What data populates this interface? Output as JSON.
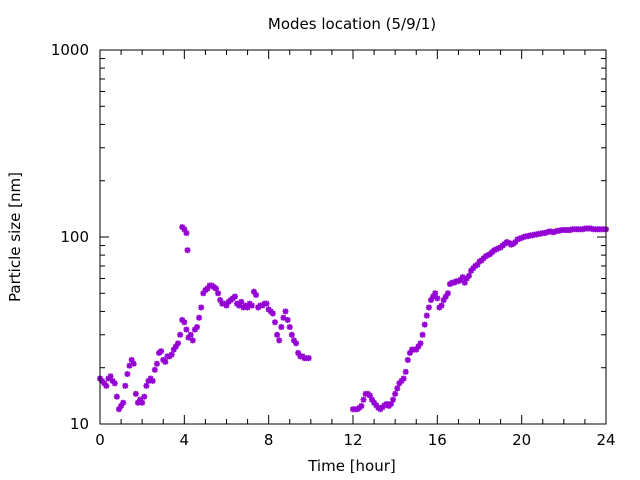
{
  "chart_data": {
    "type": "scatter",
    "title": "Modes location (5/9/1)",
    "xlabel": "Time [hour]",
    "ylabel": "Particle size [nm]",
    "xlim": [
      0,
      24
    ],
    "ylim": [
      10,
      1000
    ],
    "yscale": "log",
    "xticks": [
      0,
      4,
      8,
      12,
      16,
      20,
      24
    ],
    "xtick_labels": [
      "0",
      "4",
      "8",
      "12",
      "16",
      "20",
      "24"
    ],
    "yticks": [
      10,
      100,
      1000
    ],
    "ytick_labels": [
      "10",
      "100",
      "1000"
    ],
    "grid": false,
    "legend": "none",
    "marker": "asterisk",
    "colors": {
      "series": "#9400d3",
      "axis": "#000000"
    },
    "series": [
      {
        "x": [
          0.0,
          0.1,
          0.2,
          0.3,
          0.4,
          0.5,
          0.6,
          0.7,
          0.8,
          0.9,
          1.0,
          1.1,
          1.2,
          1.3,
          1.4,
          1.5,
          1.6,
          1.7,
          1.8,
          1.9,
          2.0,
          2.1,
          2.2,
          2.3,
          2.4,
          2.5,
          2.6,
          2.7,
          2.8,
          2.9,
          3.0,
          3.1,
          3.2,
          3.3,
          3.4,
          3.5,
          3.6,
          3.7,
          3.8,
          3.9,
          4.0,
          4.1,
          4.2,
          4.3,
          4.4,
          4.5,
          4.6,
          4.7,
          4.8,
          4.9,
          5.0,
          5.1,
          5.2,
          5.3,
          5.4,
          5.5,
          5.6,
          5.7,
          5.8,
          5.9,
          6.0,
          6.1,
          6.2,
          6.3,
          6.4,
          6.5,
          6.6,
          6.7,
          6.8,
          6.9,
          7.0,
          7.1,
          7.2,
          7.3,
          7.4,
          7.5,
          7.6,
          7.7,
          7.8,
          7.9,
          8.0,
          8.1,
          8.2,
          8.3,
          8.4,
          8.5,
          8.6,
          8.7,
          8.8,
          8.9,
          9.0,
          9.1,
          9.2,
          9.3,
          9.4,
          9.5,
          9.6,
          9.7,
          9.8,
          9.9,
          3.9,
          4.0,
          4.1,
          4.15
        ],
        "y": [
          17.5,
          17,
          16.5,
          16,
          17.5,
          18,
          17,
          16.5,
          14,
          12,
          12.5,
          13,
          16,
          18.5,
          20.5,
          22,
          21,
          14.5,
          13,
          13.5,
          13,
          14,
          16,
          17,
          17.5,
          17,
          19.5,
          21,
          24,
          24.5,
          22,
          21.5,
          23,
          23,
          23.5,
          25,
          26,
          27,
          30,
          36,
          35,
          32,
          29,
          30,
          28,
          32,
          33,
          37,
          42,
          50,
          52,
          53,
          55,
          55,
          54,
          53,
          50,
          46,
          44,
          44,
          43,
          45,
          46,
          47,
          48,
          44,
          43,
          45,
          42,
          43,
          42,
          44,
          43,
          51,
          49,
          42,
          43,
          43,
          44,
          44,
          41,
          40,
          39,
          35,
          30,
          28,
          33,
          37,
          40,
          36,
          33,
          30,
          28,
          27,
          24,
          23,
          23,
          22.5,
          22.5,
          22.5,
          113,
          110,
          105,
          85
        ]
      },
      {
        "x": [
          12.0,
          12.1,
          12.2,
          12.3,
          12.4,
          12.5,
          12.6,
          12.7,
          12.8,
          12.9,
          13.0,
          13.1,
          13.2,
          13.3,
          13.4,
          13.5,
          13.6,
          13.7,
          13.8,
          13.9,
          14.0,
          14.1,
          14.2,
          14.3,
          14.4,
          14.5,
          14.6,
          14.7,
          14.8,
          14.9,
          15.0,
          15.1,
          15.2,
          15.3,
          15.4,
          15.5,
          15.6,
          15.7,
          15.8,
          15.9,
          16.0,
          16.1,
          16.2,
          16.3,
          16.4,
          16.5,
          16.6,
          16.7,
          16.8,
          16.9,
          17.0,
          17.1,
          17.2,
          17.3,
          17.4,
          17.5,
          17.6,
          17.7,
          17.8,
          17.9,
          18.0,
          18.1,
          18.2,
          18.3,
          18.4,
          18.5,
          18.6,
          18.7,
          18.8,
          18.9,
          19.0,
          19.1,
          19.2,
          19.3,
          19.4,
          19.5,
          19.6,
          19.7,
          19.8,
          19.9,
          20.0,
          20.1,
          20.2,
          20.3,
          20.4,
          20.5,
          20.6,
          20.7,
          20.8,
          20.9,
          21.0,
          21.1,
          21.2,
          21.3,
          21.4,
          21.5,
          21.6,
          21.7,
          21.8,
          21.9,
          22.0,
          22.1,
          22.2,
          22.3,
          22.4,
          22.5,
          22.6,
          22.7,
          22.8,
          22.9,
          23.0,
          23.1,
          23.2,
          23.3,
          23.4,
          23.5,
          23.6,
          23.7,
          23.8,
          23.9,
          24.0
        ],
        "y": [
          12,
          12,
          12,
          12.2,
          12.5,
          13.5,
          14.5,
          14.5,
          14.2,
          13.5,
          13,
          12.6,
          12.2,
          12,
          12.3,
          12.6,
          12.8,
          12.5,
          12.8,
          13.5,
          14.5,
          15.5,
          16.5,
          17,
          17.5,
          19,
          22,
          24,
          25,
          25,
          25,
          26,
          27,
          30,
          34,
          38,
          42,
          46,
          48,
          50,
          47,
          42,
          43,
          46,
          48,
          50,
          56,
          57,
          57,
          58,
          58,
          59,
          61,
          57,
          60,
          62,
          66,
          68,
          70,
          71,
          74,
          75,
          77,
          79,
          80,
          81,
          83,
          85,
          86,
          87,
          88,
          90,
          92,
          94,
          93,
          91,
          92,
          94,
          97,
          98,
          99,
          100,
          101,
          101,
          102,
          102,
          103,
          103,
          104,
          104,
          105,
          105,
          106,
          107,
          107,
          106,
          107,
          108,
          108,
          109,
          109,
          109,
          109,
          109,
          110,
          110,
          110,
          110,
          110,
          110,
          111,
          111,
          111,
          111,
          110,
          110,
          110,
          110,
          110,
          110,
          110
        ]
      }
    ]
  }
}
